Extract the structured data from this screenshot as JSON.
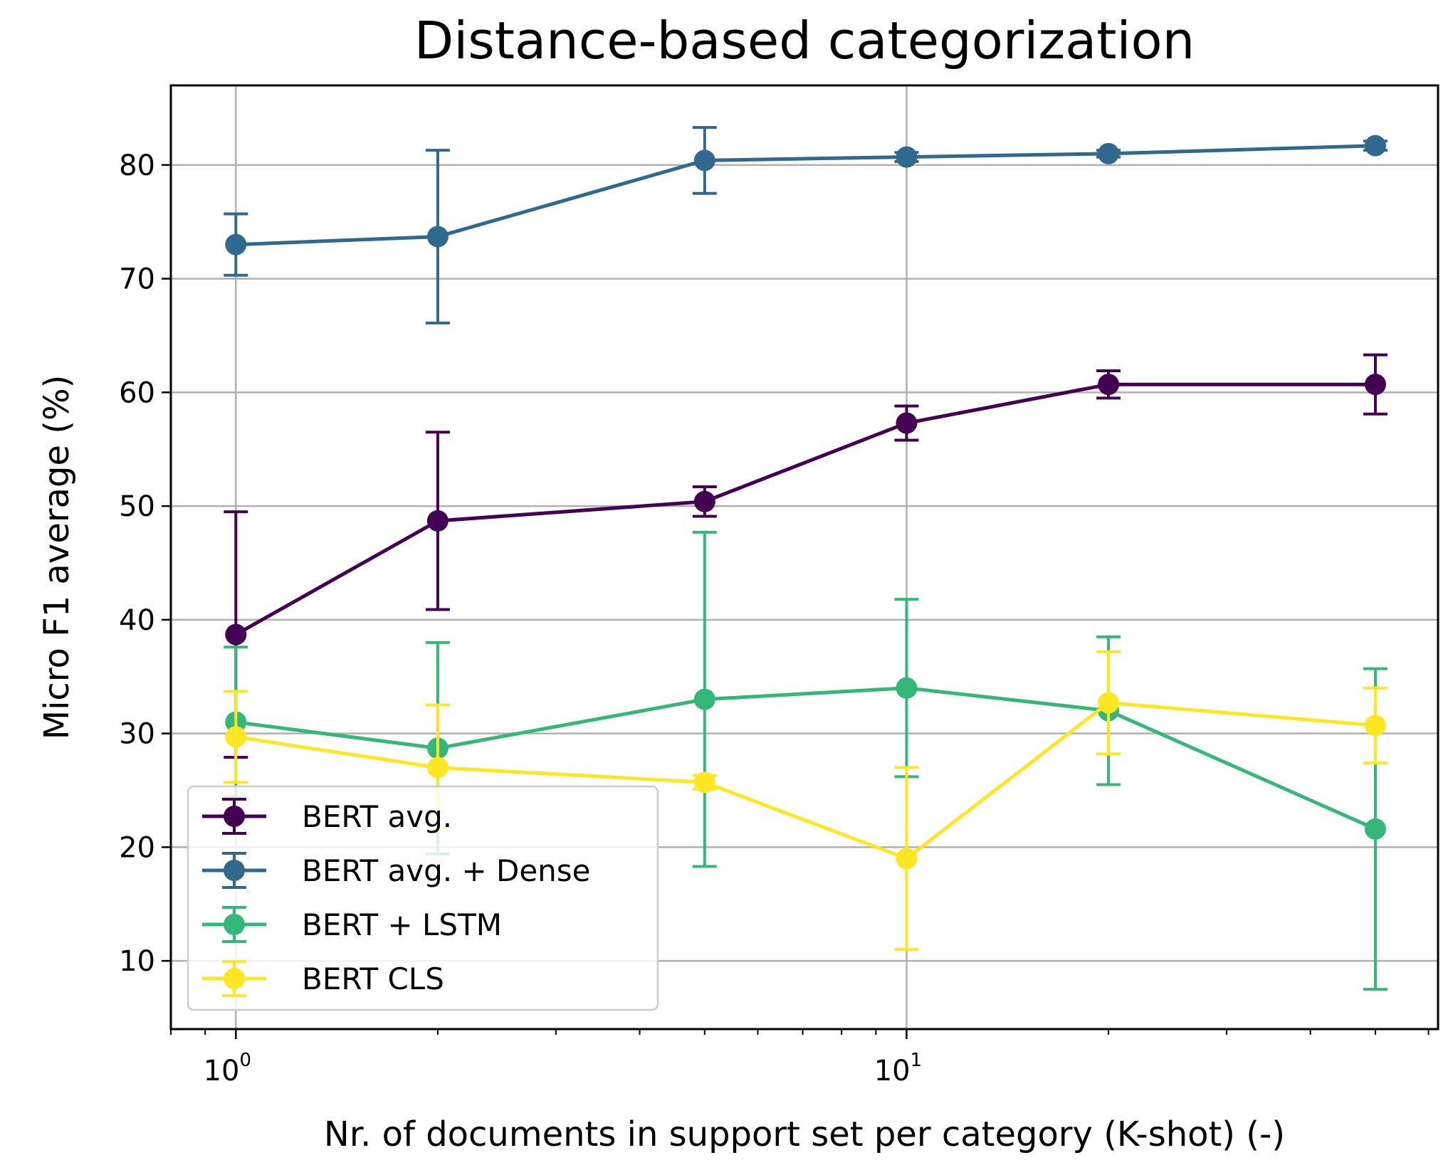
{
  "chart_data": {
    "type": "line",
    "title": "Distance-based categorization",
    "xlabel": "Nr. of documents in support set per category (K-shot) (-)",
    "ylabel": "Micro F1 average (%)",
    "xscale": "log",
    "x": [
      1,
      2,
      5,
      10,
      20,
      50
    ],
    "xlim": [
      0.8,
      62
    ],
    "ylim": [
      4,
      87
    ],
    "yticks": [
      10,
      20,
      30,
      40,
      50,
      60,
      70,
      80
    ],
    "xticks": [
      {
        "value": 1,
        "base": "10",
        "exp": "0"
      },
      {
        "value": 10,
        "base": "10",
        "exp": "1"
      }
    ],
    "grid": true,
    "legend": "lower-left",
    "series": [
      {
        "name": "BERT avg.",
        "color": "#440154",
        "values": [
          38.7,
          48.7,
          50.4,
          57.3,
          60.7,
          60.7
        ],
        "err": [
          10.8,
          7.8,
          1.3,
          1.5,
          1.2,
          2.6
        ]
      },
      {
        "name": "BERT avg. + Dense",
        "color": "#31688e",
        "values": [
          73.0,
          73.7,
          80.4,
          80.7,
          81.0,
          81.7
        ],
        "err": [
          2.7,
          7.6,
          2.9,
          0.4,
          0.3,
          0.4
        ]
      },
      {
        "name": "BERT + LSTM",
        "color": "#35b779",
        "values": [
          31.0,
          28.7,
          33.0,
          34.0,
          32.0,
          21.6
        ],
        "err": [
          6.6,
          9.3,
          14.7,
          7.8,
          6.5,
          14.1
        ]
      },
      {
        "name": "BERT CLS",
        "color": "#fde725",
        "values": [
          29.7,
          27.0,
          25.7,
          19.0,
          32.7,
          30.7
        ],
        "err": [
          4.0,
          5.5,
          0.6,
          8.0,
          4.5,
          3.3
        ]
      }
    ]
  }
}
